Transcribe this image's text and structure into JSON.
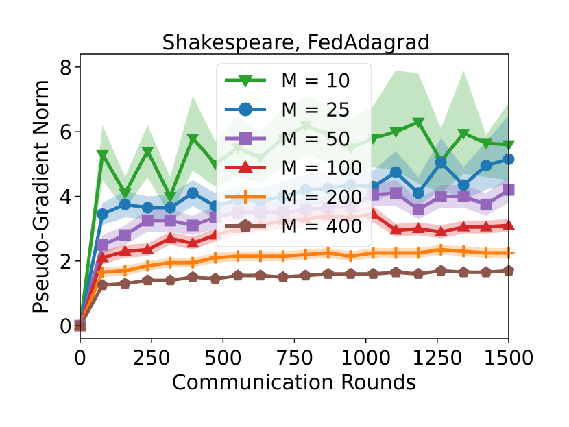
{
  "chart_data": {
    "type": "line",
    "title": "Shakespeare, FedAdagrad",
    "xlabel": "Communication Rounds",
    "ylabel": "Pseudo-Gradient Norm",
    "xlim": [
      0,
      1500
    ],
    "ylim": [
      -0.4,
      8.4
    ],
    "xticks": [
      0,
      250,
      500,
      750,
      1000,
      1250,
      1500
    ],
    "yticks": [
      0,
      2,
      4,
      6,
      8
    ],
    "grid": false,
    "legend_position": "upper center",
    "x": [
      0,
      78,
      157,
      236,
      315,
      394,
      473,
      552,
      631,
      710,
      789,
      868,
      947,
      1026,
      1105,
      1184,
      1263,
      1342,
      1421,
      1500
    ],
    "series": [
      {
        "name": "M = 10",
        "color": "#2ca02c",
        "marker": "triangle-down",
        "values": [
          0.0,
          5.3,
          4.1,
          5.4,
          4.0,
          5.8,
          5.0,
          5.5,
          5.2,
          5.8,
          6.2,
          5.9,
          5.5,
          5.8,
          6.0,
          6.3,
          5.1,
          5.95,
          5.65,
          5.6
        ],
        "band_low": [
          0.0,
          4.5,
          3.6,
          4.6,
          3.4,
          4.8,
          4.3,
          4.6,
          4.4,
          4.9,
          5.3,
          5.0,
          4.6,
          4.9,
          4.8,
          4.4,
          4.1,
          4.7,
          4.6,
          4.5
        ],
        "band_high": [
          0.0,
          6.2,
          4.6,
          6.2,
          4.6,
          7.1,
          5.7,
          6.5,
          6.0,
          6.7,
          7.1,
          6.8,
          6.4,
          6.8,
          7.9,
          7.8,
          6.1,
          7.9,
          5.9,
          6.9
        ]
      },
      {
        "name": "M = 25",
        "color": "#1f77b4",
        "marker": "circle",
        "values": [
          0.0,
          3.45,
          3.75,
          3.65,
          3.65,
          4.1,
          3.7,
          3.9,
          3.85,
          4.0,
          4.2,
          4.25,
          4.35,
          4.3,
          4.75,
          4.1,
          5.05,
          4.35,
          4.95,
          5.15
        ],
        "band_low": [
          0.0,
          3.1,
          3.35,
          3.3,
          3.25,
          3.7,
          3.3,
          3.5,
          3.45,
          3.6,
          3.7,
          3.8,
          3.8,
          3.85,
          4.1,
          3.7,
          4.2,
          3.9,
          4.2,
          4.4
        ],
        "band_high": [
          0.0,
          3.8,
          4.15,
          4.0,
          4.05,
          4.5,
          4.1,
          4.3,
          4.25,
          4.45,
          4.7,
          4.75,
          4.9,
          4.8,
          5.4,
          4.6,
          5.8,
          4.9,
          5.7,
          6.5
        ]
      },
      {
        "name": "M = 50",
        "color": "#9467bd",
        "marker": "square",
        "values": [
          0.0,
          2.5,
          2.8,
          3.25,
          3.25,
          3.1,
          3.35,
          3.5,
          3.5,
          3.5,
          3.6,
          3.65,
          3.7,
          4.05,
          4.1,
          3.6,
          4.0,
          4.0,
          3.75,
          4.2
        ],
        "band_low": [
          0.0,
          2.2,
          2.5,
          2.9,
          2.9,
          2.8,
          3.0,
          3.15,
          3.15,
          3.15,
          3.25,
          3.3,
          3.35,
          3.7,
          3.7,
          3.3,
          3.65,
          3.65,
          3.4,
          3.8
        ],
        "band_high": [
          0.0,
          2.8,
          3.1,
          3.6,
          3.6,
          3.4,
          3.7,
          3.85,
          3.85,
          3.85,
          3.95,
          4.0,
          4.05,
          4.4,
          4.5,
          3.9,
          4.35,
          4.35,
          4.1,
          4.6
        ]
      },
      {
        "name": "M = 100",
        "color": "#d62728",
        "marker": "triangle-up",
        "values": [
          0.0,
          2.1,
          2.3,
          2.35,
          2.7,
          2.55,
          2.8,
          3.0,
          3.1,
          3.25,
          3.3,
          3.4,
          3.35,
          3.45,
          2.95,
          3.0,
          2.9,
          3.05,
          3.05,
          3.1
        ],
        "band_low": [
          0.0,
          1.9,
          2.1,
          2.15,
          2.5,
          2.35,
          2.6,
          2.8,
          2.9,
          3.0,
          3.05,
          3.15,
          3.1,
          3.2,
          2.75,
          2.8,
          2.7,
          2.85,
          2.85,
          2.9
        ],
        "band_high": [
          0.0,
          2.3,
          2.5,
          2.55,
          2.9,
          2.75,
          3.0,
          3.2,
          3.3,
          3.5,
          3.55,
          3.65,
          3.6,
          3.7,
          3.15,
          3.2,
          3.1,
          3.25,
          3.25,
          3.3
        ]
      },
      {
        "name": "M = 200",
        "color": "#ff7f0e",
        "marker": "plus",
        "values": [
          0.0,
          1.65,
          1.7,
          1.85,
          1.95,
          1.95,
          2.1,
          2.15,
          2.15,
          2.15,
          2.2,
          2.25,
          2.15,
          2.25,
          2.25,
          2.25,
          2.35,
          2.3,
          2.25,
          2.25
        ],
        "band_low": [
          0.0,
          1.5,
          1.55,
          1.7,
          1.8,
          1.8,
          1.95,
          2.0,
          2.0,
          2.0,
          2.05,
          2.1,
          2.0,
          2.1,
          2.1,
          2.1,
          2.2,
          2.15,
          2.1,
          2.1
        ],
        "band_high": [
          0.0,
          1.8,
          1.85,
          2.0,
          2.1,
          2.1,
          2.25,
          2.3,
          2.3,
          2.3,
          2.35,
          2.4,
          2.3,
          2.4,
          2.4,
          2.4,
          2.5,
          2.45,
          2.4,
          2.4
        ]
      },
      {
        "name": "M = 400",
        "color": "#8c564b",
        "marker": "pentagon",
        "values": [
          0.0,
          1.25,
          1.3,
          1.4,
          1.4,
          1.5,
          1.45,
          1.55,
          1.55,
          1.5,
          1.55,
          1.6,
          1.6,
          1.6,
          1.65,
          1.6,
          1.7,
          1.65,
          1.65,
          1.7
        ],
        "band_low": [
          0.0,
          1.2,
          1.25,
          1.35,
          1.35,
          1.45,
          1.4,
          1.5,
          1.5,
          1.45,
          1.5,
          1.55,
          1.55,
          1.55,
          1.6,
          1.55,
          1.65,
          1.6,
          1.6,
          1.65
        ],
        "band_high": [
          0.0,
          1.3,
          1.35,
          1.45,
          1.45,
          1.55,
          1.5,
          1.6,
          1.6,
          1.55,
          1.6,
          1.65,
          1.65,
          1.65,
          1.7,
          1.65,
          1.75,
          1.7,
          1.7,
          1.75
        ]
      }
    ]
  }
}
